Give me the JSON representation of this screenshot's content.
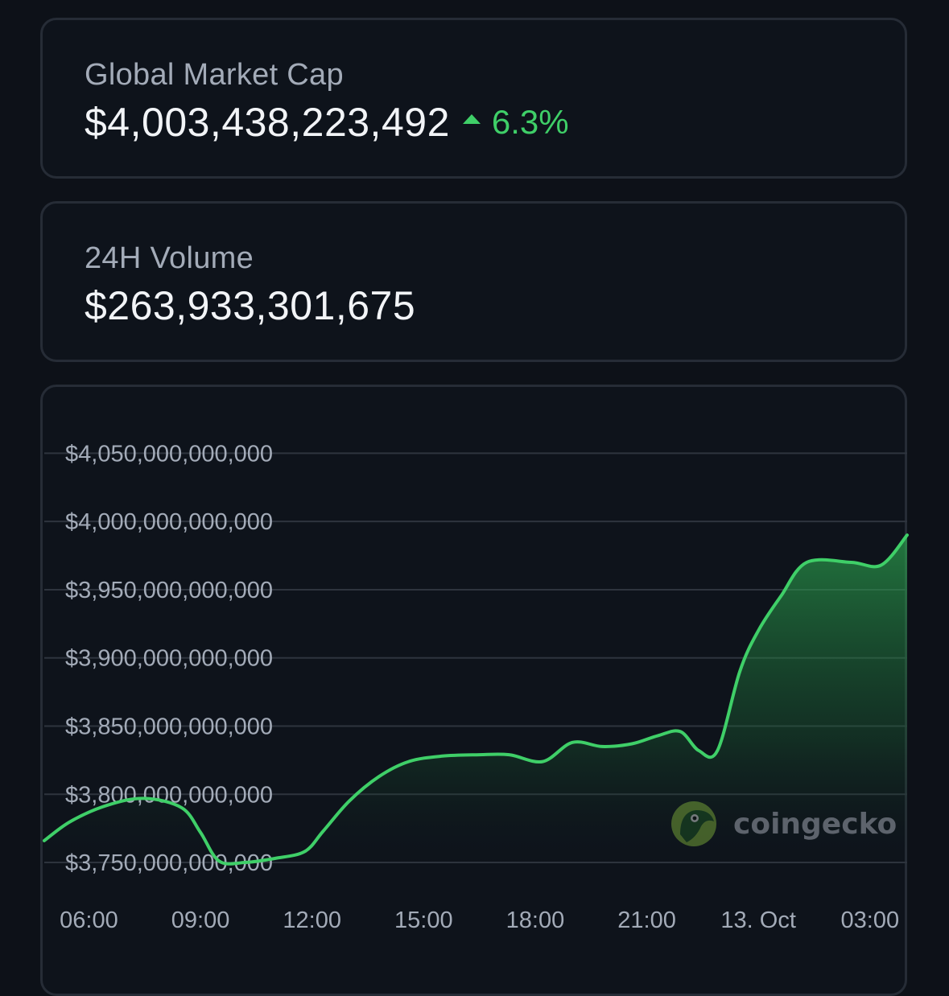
{
  "market_cap": {
    "label": "Global Market Cap",
    "value": "$4,003,438,223,492",
    "change": "6.3%",
    "change_direction": "up",
    "change_color": "#3fcf68"
  },
  "volume": {
    "label": "24H Volume",
    "value": "$263,933,301,675"
  },
  "watermark": {
    "text": "coingecko",
    "icon": "coingecko-gecko-logo"
  },
  "chart_data": {
    "type": "area",
    "title": "",
    "xlabel": "",
    "ylabel": "",
    "y_tick_labels": [
      "$4,050,000,000,000",
      "$4,000,000,000,000",
      "$3,950,000,000,000",
      "$3,900,000,000,000",
      "$3,850,000,000,000",
      "$3,800,000,000,000",
      "$3,750,000,000,000"
    ],
    "y_ticks": [
      4050,
      4000,
      3950,
      3900,
      3850,
      3800,
      3750
    ],
    "y_unit": "billions USD",
    "ylim": [
      3740,
      4075
    ],
    "x_tick_labels": [
      "06:00",
      "09:00",
      "12:00",
      "15:00",
      "18:00",
      "21:00",
      "13. Oct",
      "03:00"
    ],
    "x_ticks_hours": [
      6,
      9,
      12,
      15,
      18,
      21,
      24,
      27
    ],
    "xlim_hours": [
      4.8,
      28.0
    ],
    "grid": true,
    "series": [
      {
        "color": "#3fcf68",
        "points": [
          [
            4.8,
            3766
          ],
          [
            5.5,
            3780
          ],
          [
            6.5,
            3792
          ],
          [
            7.5,
            3797
          ],
          [
            8.5,
            3790
          ],
          [
            9.0,
            3772
          ],
          [
            9.5,
            3751
          ],
          [
            10.2,
            3750
          ],
          [
            11.0,
            3753
          ],
          [
            11.8,
            3758
          ],
          [
            12.3,
            3773
          ],
          [
            13.0,
            3795
          ],
          [
            13.8,
            3813
          ],
          [
            14.6,
            3824
          ],
          [
            15.5,
            3828
          ],
          [
            16.5,
            3829
          ],
          [
            17.3,
            3829
          ],
          [
            18.2,
            3824
          ],
          [
            19.0,
            3838
          ],
          [
            19.8,
            3835
          ],
          [
            20.6,
            3837
          ],
          [
            21.3,
            3843
          ],
          [
            21.9,
            3846
          ],
          [
            22.4,
            3832
          ],
          [
            22.9,
            3832
          ],
          [
            23.5,
            3890
          ],
          [
            24.0,
            3920
          ],
          [
            24.6,
            3945
          ],
          [
            25.3,
            3970
          ],
          [
            26.5,
            3970
          ],
          [
            27.3,
            3968
          ],
          [
            28.0,
            3990
          ]
        ]
      }
    ]
  }
}
